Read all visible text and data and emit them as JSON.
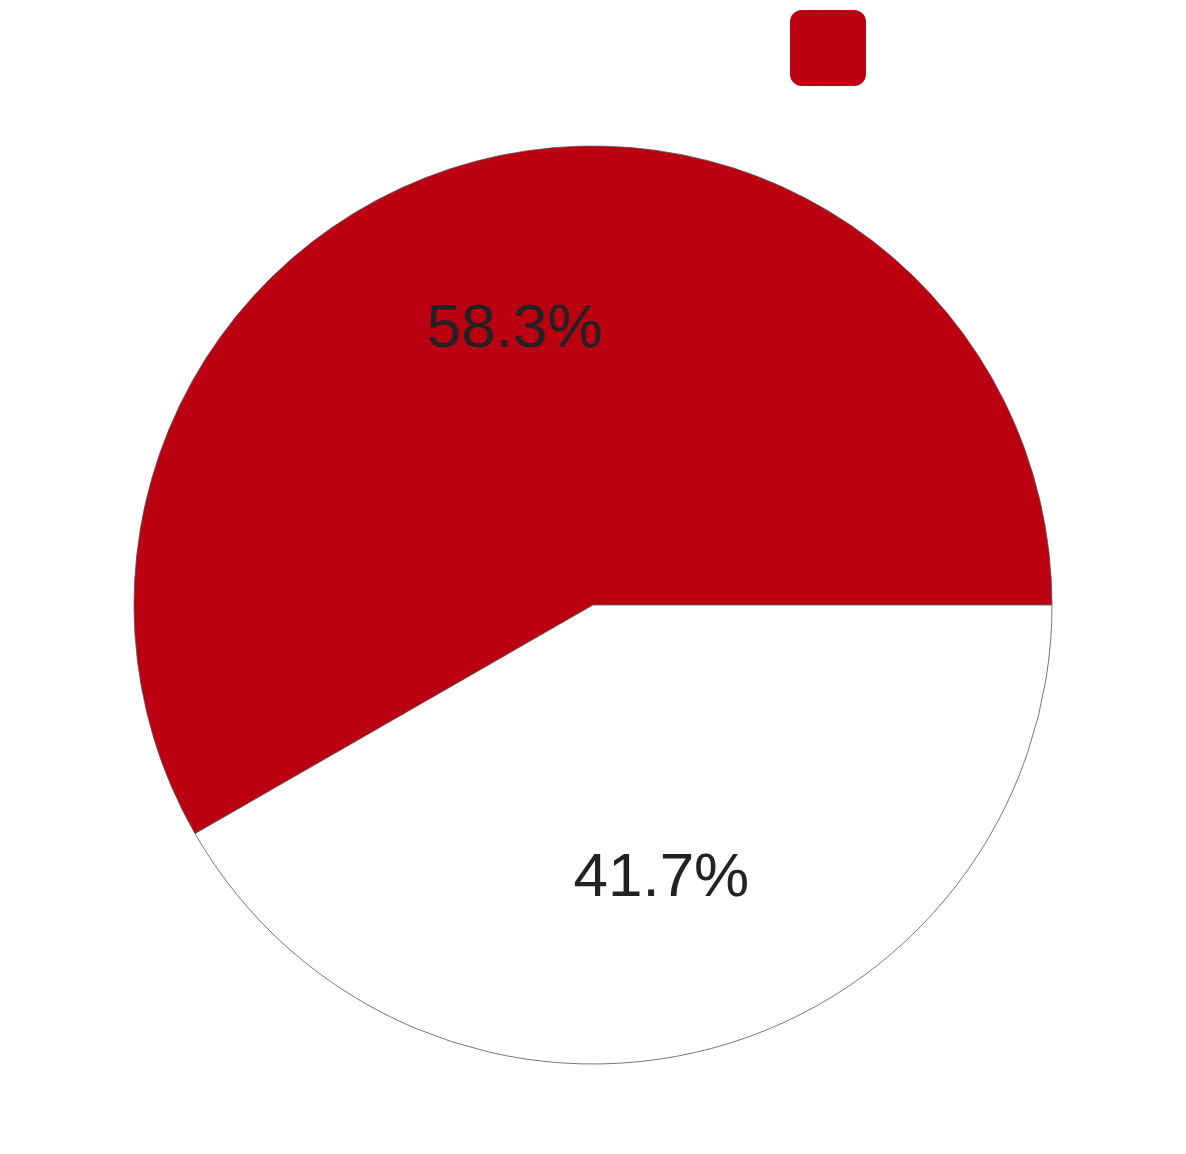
{
  "chart_data": {
    "type": "pie",
    "categories": [
      null,
      null
    ],
    "values": [
      58.3,
      41.7
    ],
    "colors": [
      "#bb0011",
      "#ffffff"
    ],
    "value_labels": [
      "58.3%",
      "41.7%"
    ]
  }
}
